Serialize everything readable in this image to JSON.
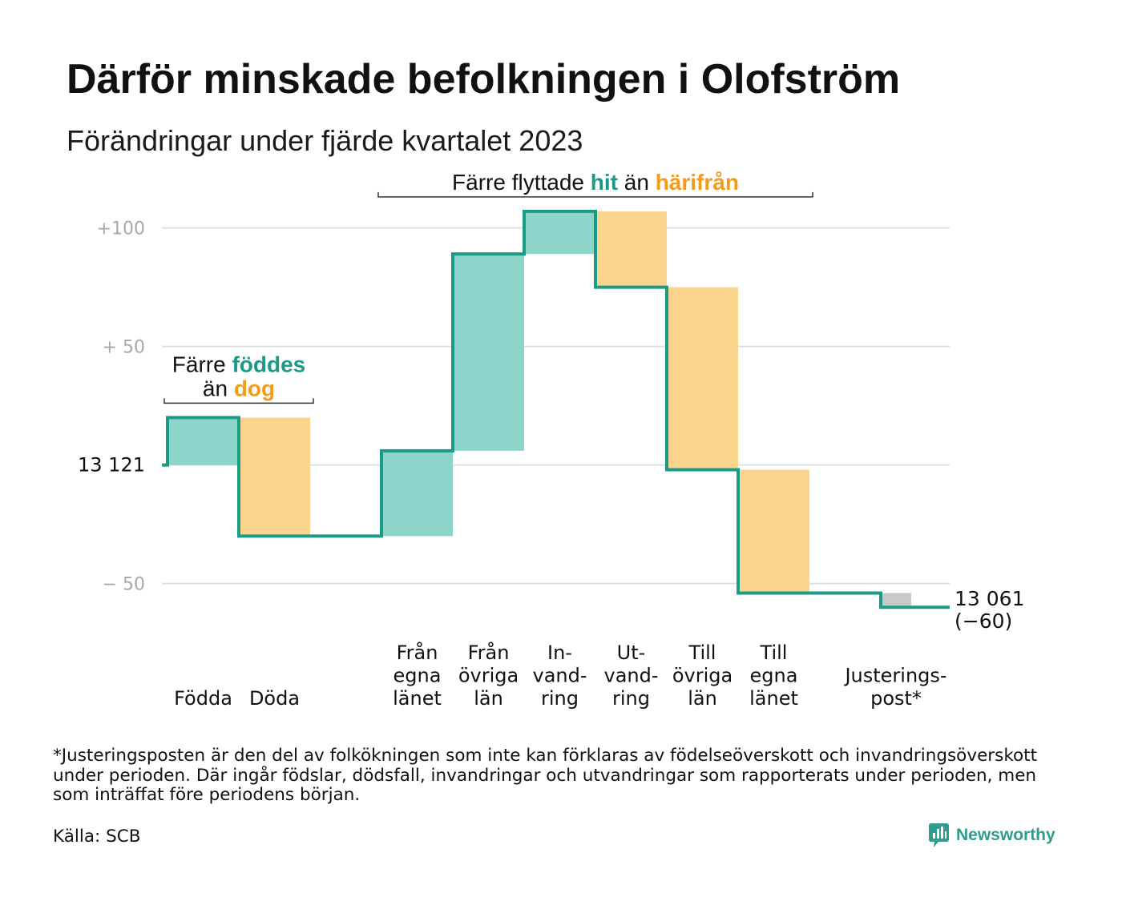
{
  "chart_data": {
    "type": "bar",
    "variant": "waterfall",
    "title": "Därför minskade befolkningen i Olofström",
    "subtitle": "Förändringar under fjärde kvartalet 2023",
    "start_value": 13121,
    "end_value": 13061,
    "net_change": -60,
    "ylim": [
      -65,
      110
    ],
    "grid": true,
    "y_ticks": [
      {
        "value": 100,
        "label": "+100"
      },
      {
        "value": 50,
        "label": "+ 50"
      },
      {
        "value": 0,
        "label": "13 121"
      },
      {
        "value": -50,
        "label": "− 50"
      }
    ],
    "groups": [
      {
        "annotation": [
          [
            {
              "text": "Färre"
            },
            {
              "text": "föddes",
              "color": "#1b9a88",
              "bold": true
            }
          ],
          [
            {
              "text": "än"
            },
            {
              "text": "dog",
              "color": "#f39c1c",
              "bold": true
            }
          ]
        ],
        "bars": [
          {
            "label": [
              "Födda"
            ],
            "value": 20
          },
          {
            "label": [
              "Döda"
            ],
            "value": -50
          }
        ]
      },
      {
        "annotation": [
          [
            {
              "text": "Färre flyttade"
            },
            {
              "text": "hit",
              "color": "#1b9a88",
              "bold": true
            },
            {
              "text": "än"
            },
            {
              "text": "härifrån",
              "color": "#f39c1c",
              "bold": true
            }
          ]
        ],
        "bars": [
          {
            "label": [
              "Från",
              "egna",
              "länet"
            ],
            "value": 36
          },
          {
            "label": [
              "Från",
              "övriga",
              "län"
            ],
            "value": 83
          },
          {
            "label": [
              "In-",
              "vand-",
              "ring"
            ],
            "value": 18
          },
          {
            "label": [
              "Ut-",
              "vand-",
              "ring"
            ],
            "value": -32
          },
          {
            "label": [
              "Till",
              "övriga",
              "län"
            ],
            "value": -77
          },
          {
            "label": [
              "Till",
              "egna",
              "länet"
            ],
            "value": -52
          }
        ]
      },
      {
        "bars": [
          {
            "label": [
              "Justerings-",
              "post*"
            ],
            "value": -6,
            "adjustment": true
          }
        ]
      }
    ],
    "end_label": [
      "13 061",
      "(−60)"
    ],
    "colors": {
      "increase": "#8dd5cb",
      "decrease": "#fbd58e",
      "adjustment": "#c9c9c9",
      "line": "#1b9a88",
      "gridline": "#dfdfe6"
    }
  },
  "footnote": {
    "lines": [
      "*Justeringsposten är den del av folkökningen som inte kan förklaras av födelseöverskott och invandringsöverskott",
      "under perioden. Där ingår födslar, dödsfall, invandringar och utvandringar som rapporterats under perioden, men",
      "som inträffat före periodens början."
    ]
  },
  "source": "Källa: SCB",
  "brand": {
    "name": "Newsworthy",
    "icon": "newsworthy-chart-bubble-icon",
    "color": "#2f9d8e"
  }
}
